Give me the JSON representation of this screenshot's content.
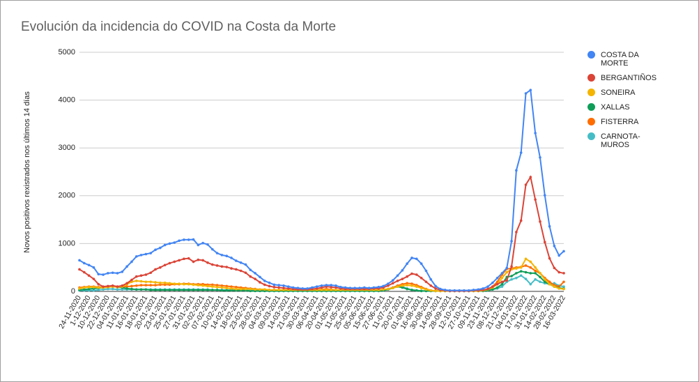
{
  "chart_data": {
    "type": "line",
    "title": "Evolución da incidencia do COVID na Costa da Morte",
    "y_label": "Novos positivos rexistrados nos últimos 14 días",
    "categories": [
      "24-11-2020",
      null,
      "1-12-2020",
      null,
      "10-12-2020",
      null,
      "22-12-2020",
      null,
      "04-01-2021",
      null,
      "11-01-2021",
      null,
      "16-01-2021",
      null,
      "18-01-2021",
      null,
      "20-01-2021",
      null,
      "23-01-2021",
      null,
      "25-01-2021",
      null,
      "27-01-2021",
      null,
      "31-01-2021",
      null,
      "02-02-2021",
      null,
      "07-02-2021",
      null,
      "10-02-2021",
      null,
      "14-02-2021",
      null,
      "18-02-2021",
      null,
      "23-02-2021",
      null,
      "28-02-2021",
      null,
      "04-03-2021",
      null,
      "09-03-2021",
      null,
      "14-03-2021",
      null,
      "21-03-2021",
      null,
      "30-03-2021",
      null,
      "06-04-2021",
      null,
      "20-04-2021",
      null,
      "01-05-2021",
      null,
      "11-05-2021",
      null,
      "25-05-2021",
      null,
      "05-06-2021",
      null,
      "15-06-2021",
      null,
      "27-06-2021",
      null,
      "11-07-2021",
      null,
      "20-07-2021",
      null,
      "01-08-2021",
      null,
      "16-08-2021",
      null,
      "30-08-2021",
      null,
      "14-09-2021",
      null,
      "28-09-2021",
      null,
      "12-10-2021",
      null,
      "27-10-2021",
      null,
      "09-11-2021",
      null,
      "23-11-2021",
      null,
      "08-12-2021",
      null,
      "21-12-2021",
      null,
      "04-01-2022",
      null,
      "17-01-2022",
      null,
      "31-01-2022",
      null,
      "14-02-2022",
      null,
      "28-02-2022",
      null,
      "16-03-2022"
    ],
    "series": [
      {
        "name": "COSTA DA MORTE",
        "color": "#4285f4",
        "values": [
          650,
          590,
          550,
          500,
          360,
          350,
          380,
          390,
          380,
          410,
          520,
          620,
          730,
          760,
          780,
          800,
          870,
          910,
          970,
          1000,
          1020,
          1060,
          1080,
          1080,
          1085,
          970,
          1010,
          980,
          880,
          800,
          760,
          740,
          700,
          640,
          600,
          560,
          450,
          380,
          300,
          220,
          180,
          140,
          130,
          120,
          100,
          80,
          70,
          60,
          60,
          80,
          100,
          120,
          130,
          130,
          120,
          90,
          80,
          70,
          70,
          70,
          80,
          70,
          80,
          90,
          110,
          160,
          230,
          330,
          440,
          580,
          700,
          680,
          580,
          430,
          250,
          110,
          50,
          30,
          20,
          20,
          20,
          20,
          20,
          30,
          40,
          60,
          100,
          180,
          280,
          380,
          490,
          1050,
          2530,
          2900,
          4140,
          4210,
          3310,
          2800,
          2010,
          1360,
          950,
          750,
          840
        ]
      },
      {
        "name": "BERGANTIÑOS",
        "color": "#db4437",
        "values": [
          460,
          400,
          330,
          260,
          150,
          100,
          110,
          120,
          100,
          120,
          170,
          240,
          310,
          330,
          350,
          390,
          460,
          500,
          550,
          590,
          620,
          650,
          680,
          690,
          620,
          660,
          650,
          600,
          560,
          540,
          520,
          510,
          480,
          460,
          430,
          390,
          310,
          260,
          190,
          140,
          110,
          90,
          80,
          70,
          60,
          50,
          40,
          40,
          40,
          50,
          60,
          80,
          100,
          90,
          80,
          60,
          50,
          50,
          50,
          50,
          50,
          50,
          60,
          60,
          80,
          120,
          170,
          220,
          260,
          310,
          370,
          350,
          280,
          200,
          120,
          60,
          30,
          20,
          10,
          10,
          10,
          10,
          10,
          20,
          20,
          30,
          50,
          100,
          150,
          200,
          230,
          520,
          1240,
          1480,
          2230,
          2390,
          1920,
          1460,
          1030,
          690,
          490,
          400,
          380
        ]
      },
      {
        "name": "SONEIRA",
        "color": "#f4b400",
        "values": [
          60,
          80,
          90,
          90,
          80,
          80,
          90,
          100,
          90,
          100,
          150,
          200,
          220,
          210,
          200,
          200,
          190,
          180,
          180,
          170,
          160,
          160,
          150,
          150,
          140,
          130,
          120,
          110,
          100,
          90,
          80,
          70,
          60,
          50,
          50,
          50,
          50,
          40,
          40,
          40,
          30,
          30,
          30,
          30,
          30,
          30,
          30,
          30,
          30,
          30,
          30,
          30,
          30,
          30,
          30,
          30,
          30,
          30,
          30,
          30,
          30,
          30,
          30,
          30,
          40,
          50,
          70,
          100,
          120,
          130,
          120,
          100,
          70,
          40,
          20,
          10,
          10,
          10,
          10,
          10,
          10,
          10,
          10,
          10,
          10,
          20,
          40,
          80,
          150,
          280,
          400,
          460,
          480,
          500,
          680,
          620,
          500,
          380,
          250,
          150,
          100,
          60,
          50
        ]
      },
      {
        "name": "XALLAS",
        "color": "#0f9d58",
        "values": [
          30,
          40,
          50,
          60,
          70,
          80,
          90,
          100,
          90,
          80,
          60,
          50,
          40,
          40,
          40,
          30,
          30,
          30,
          30,
          30,
          30,
          30,
          30,
          30,
          30,
          30,
          30,
          30,
          30,
          30,
          20,
          20,
          20,
          20,
          20,
          20,
          10,
          10,
          10,
          10,
          10,
          10,
          10,
          10,
          10,
          10,
          10,
          10,
          10,
          10,
          10,
          10,
          10,
          10,
          10,
          10,
          10,
          10,
          10,
          10,
          10,
          10,
          10,
          10,
          20,
          40,
          70,
          100,
          80,
          50,
          30,
          20,
          10,
          10,
          10,
          10,
          10,
          10,
          10,
          10,
          10,
          10,
          10,
          10,
          10,
          10,
          20,
          40,
          80,
          150,
          300,
          320,
          380,
          420,
          400,
          380,
          380,
          300,
          200,
          150,
          100,
          70,
          60
        ]
      },
      {
        "name": "FISTERRA",
        "color": "#ff6d01",
        "values": [
          80,
          90,
          100,
          100,
          90,
          90,
          100,
          100,
          100,
          100,
          100,
          110,
          120,
          130,
          130,
          130,
          130,
          140,
          140,
          140,
          150,
          150,
          160,
          160,
          150,
          150,
          150,
          140,
          140,
          130,
          120,
          110,
          100,
          90,
          80,
          70,
          60,
          50,
          40,
          40,
          30,
          30,
          30,
          20,
          20,
          20,
          20,
          20,
          20,
          20,
          30,
          40,
          50,
          40,
          30,
          20,
          20,
          20,
          20,
          20,
          20,
          20,
          20,
          20,
          30,
          50,
          80,
          120,
          150,
          170,
          160,
          130,
          90,
          50,
          20,
          10,
          10,
          10,
          10,
          10,
          10,
          10,
          10,
          10,
          10,
          20,
          40,
          100,
          200,
          350,
          470,
          480,
          500,
          510,
          540,
          500,
          430,
          380,
          280,
          200,
          130,
          100,
          200
        ]
      },
      {
        "name": "CARNOTA-MUROS",
        "color": "#46bdc6",
        "values": [
          20,
          20,
          20,
          20,
          30,
          40,
          50,
          50,
          40,
          40,
          40,
          40,
          40,
          40,
          40,
          40,
          40,
          40,
          40,
          40,
          40,
          40,
          40,
          40,
          40,
          40,
          40,
          40,
          30,
          30,
          30,
          30,
          30,
          20,
          20,
          20,
          20,
          20,
          20,
          20,
          10,
          10,
          10,
          10,
          10,
          10,
          10,
          10,
          10,
          10,
          10,
          10,
          10,
          10,
          10,
          10,
          10,
          10,
          10,
          10,
          10,
          10,
          10,
          10,
          20,
          40,
          80,
          120,
          100,
          60,
          30,
          20,
          10,
          10,
          10,
          10,
          10,
          10,
          10,
          10,
          10,
          10,
          10,
          10,
          10,
          10,
          20,
          40,
          60,
          100,
          200,
          250,
          280,
          330,
          260,
          150,
          250,
          200,
          170,
          150,
          170,
          120,
          100
        ]
      }
    ],
    "ylim": [
      0,
      5000
    ],
    "yticks": [
      0,
      1000,
      2000,
      3000,
      4000,
      5000
    ],
    "grid": true,
    "legend": "right"
  }
}
